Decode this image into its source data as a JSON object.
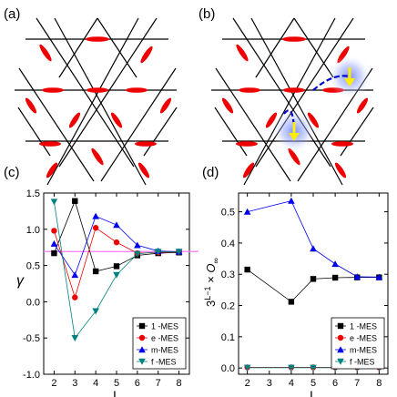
{
  "panels": {
    "a": {
      "label": "(a)"
    },
    "b": {
      "label": "(b)"
    },
    "c": {
      "label": "(c)"
    },
    "d": {
      "label": "(d)"
    }
  },
  "colors": {
    "lattice": "#000000",
    "dimer": "#ee0000",
    "string": "#0000cc",
    "vison_glow": "#6677ff",
    "arrow": "#ffee00",
    "hline": "#ff77ff"
  },
  "chart_data": [
    {
      "panel": "c",
      "type": "line",
      "xlabel": "L",
      "ylabel": "γ",
      "xlim": [
        1.5,
        8.5
      ],
      "ylim": [
        -1.0,
        1.5
      ],
      "xticks": [
        2,
        3,
        4,
        5,
        6,
        7,
        8
      ],
      "yticks": [
        -1.0,
        -0.5,
        0.0,
        0.5,
        1.0,
        1.5
      ],
      "yticklabels": [
        "-1.0",
        "-0.5",
        "0.0",
        "0.5",
        "1.0",
        "1.5"
      ],
      "hline": 0.693,
      "legend_position": "lower-right",
      "series": [
        {
          "name": "1 -MES",
          "color": "#000000",
          "marker": "square",
          "x": [
            2,
            3,
            4,
            5,
            6,
            7,
            8
          ],
          "y": [
            0.67,
            1.39,
            0.42,
            0.49,
            0.64,
            0.67,
            0.68
          ]
        },
        {
          "name": "e -MES",
          "color": "#ee0000",
          "marker": "circle",
          "x": [
            2,
            3,
            4,
            5,
            6,
            7,
            8
          ],
          "y": [
            0.98,
            0.06,
            1.02,
            0.82,
            0.67,
            0.68,
            0.69
          ]
        },
        {
          "name": "m-MES",
          "color": "#0000ee",
          "marker": "triangle-up",
          "x": [
            2,
            3,
            4,
            5,
            6,
            7,
            8
          ],
          "y": [
            0.8,
            0.37,
            1.18,
            1.06,
            0.78,
            0.7,
            0.69
          ]
        },
        {
          "name": "f -MES",
          "color": "#008080",
          "marker": "triangle-down",
          "x": [
            2,
            3,
            4,
            5,
            6,
            7,
            8
          ],
          "y": [
            1.38,
            -0.5,
            -0.13,
            0.37,
            0.66,
            0.69,
            0.69
          ]
        }
      ]
    },
    {
      "panel": "d",
      "type": "line",
      "xlabel": "L",
      "ylabel": "3^{L-1} × O∞",
      "ylabel_parts": {
        "base": "3",
        "exp": "L−1",
        "times": "×",
        "sym": "O",
        "sub": "∞"
      },
      "xlim": [
        1.6,
        8.4
      ],
      "ylim": [
        -0.02,
        0.56
      ],
      "xticks": [
        2,
        3,
        4,
        5,
        6,
        7,
        8
      ],
      "yticks": [
        0.0,
        0.1,
        0.2,
        0.3,
        0.4,
        0.5
      ],
      "yticklabels": [
        "0.0",
        "0.1",
        "0.2",
        "0.3",
        "0.4",
        "0.5"
      ],
      "legend_position": "lower-right",
      "series": [
        {
          "name": "1 -MES",
          "color": "#000000",
          "marker": "square",
          "x": [
            2,
            4,
            5,
            6,
            7,
            8
          ],
          "y": [
            0.315,
            0.212,
            0.285,
            0.289,
            0.29,
            0.29
          ]
        },
        {
          "name": "e -MES",
          "color": "#ee0000",
          "marker": "circle",
          "x": [
            2,
            4,
            5,
            6,
            7,
            8
          ],
          "y": [
            0.002,
            0.002,
            0.002,
            0.002,
            0.002,
            0.002
          ]
        },
        {
          "name": "m-MES",
          "color": "#0000ee",
          "marker": "triangle-up",
          "x": [
            2,
            4,
            5,
            6,
            7,
            8
          ],
          "y": [
            0.5,
            0.535,
            0.382,
            0.333,
            0.292,
            0.291
          ]
        },
        {
          "name": "f -MES",
          "color": "#008080",
          "marker": "triangle-down",
          "x": [
            2,
            4,
            5,
            6,
            7,
            8
          ],
          "y": [
            0.001,
            0.001,
            0.001,
            0.001,
            0.001,
            0.001
          ]
        }
      ]
    }
  ]
}
